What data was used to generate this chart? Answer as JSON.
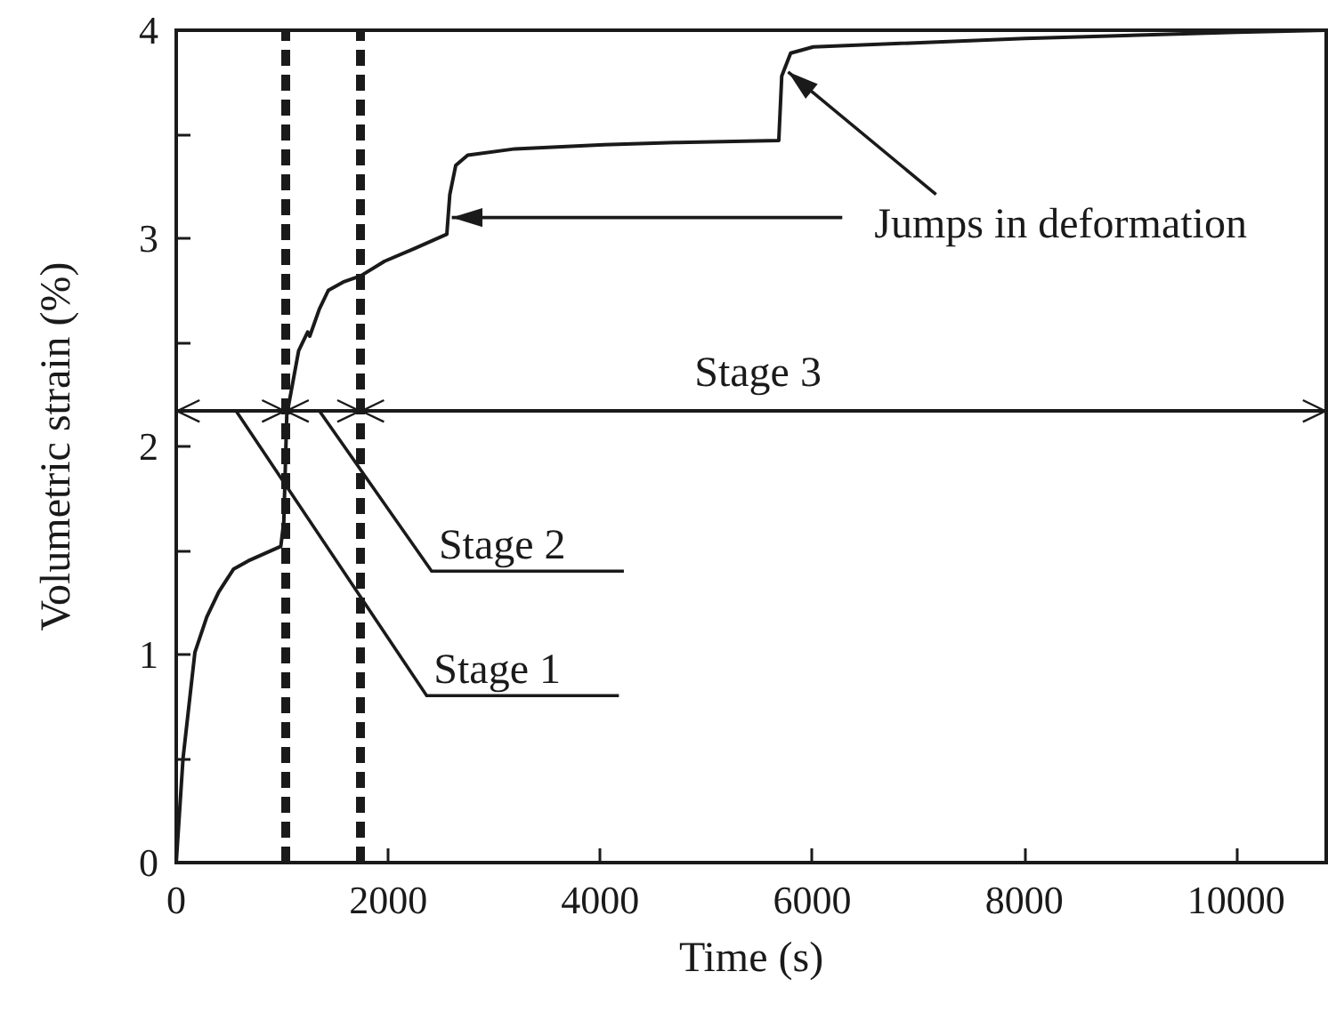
{
  "chart_data": {
    "type": "line",
    "xlabel": "Time (s)",
    "ylabel": "Volumetric strain (%)",
    "xlim": [
      0,
      10850
    ],
    "xticks": [
      0,
      2000,
      4000,
      6000,
      8000,
      10000
    ],
    "ylim": [
      0,
      4
    ],
    "yticks": [
      0,
      {
        "value": 0.5,
        "label": null
      },
      1,
      {
        "value": 1.5,
        "label": null
      },
      2,
      {
        "value": 2.5,
        "label": null
      },
      3,
      {
        "value": 3.5,
        "label": null
      },
      4
    ],
    "grid": false,
    "marker": "none",
    "line_style": "solid",
    "series": [
      {
        "color": "#1a1a1a",
        "x": [
          0,
          64,
          176,
          288,
          400,
          540,
          680,
          987,
          1015,
          1043,
          1155,
          1240,
          1260,
          1350,
          1435,
          1575,
          1742,
          1966,
          2245,
          2553,
          2581,
          2637,
          2750,
          3196,
          4035,
          4706,
          5685,
          5713,
          5797,
          6010,
          8007,
          10008,
          10850
        ],
        "values": [
          0,
          0.5,
          1.01,
          1.18,
          1.3,
          1.41,
          1.45,
          1.52,
          1.64,
          2.15,
          2.46,
          2.55,
          2.53,
          2.66,
          2.75,
          2.79,
          2.82,
          2.89,
          2.95,
          3.02,
          3.21,
          3.35,
          3.4,
          3.43,
          3.45,
          3.46,
          3.47,
          3.78,
          3.89,
          3.92,
          3.96,
          3.99,
          4.0
        ]
      }
    ],
    "ref_lines": [
      {
        "axis": "x",
        "value": 1030,
        "color": "#1a1a1a",
        "line_style": "dashed"
      },
      {
        "axis": "x",
        "value": 1740,
        "color": "#1a1a1a",
        "line_style": "dashed"
      },
      {
        "axis": "y",
        "value": 2.17,
        "color": "#1a1a1a",
        "line_style": "solid"
      }
    ],
    "annotations": [
      "Stage 1",
      "Stage 2",
      "Stage 3",
      {
        "text": "Jumps in deformation",
        "x": 2600,
        "y": 3.1
      }
    ]
  }
}
